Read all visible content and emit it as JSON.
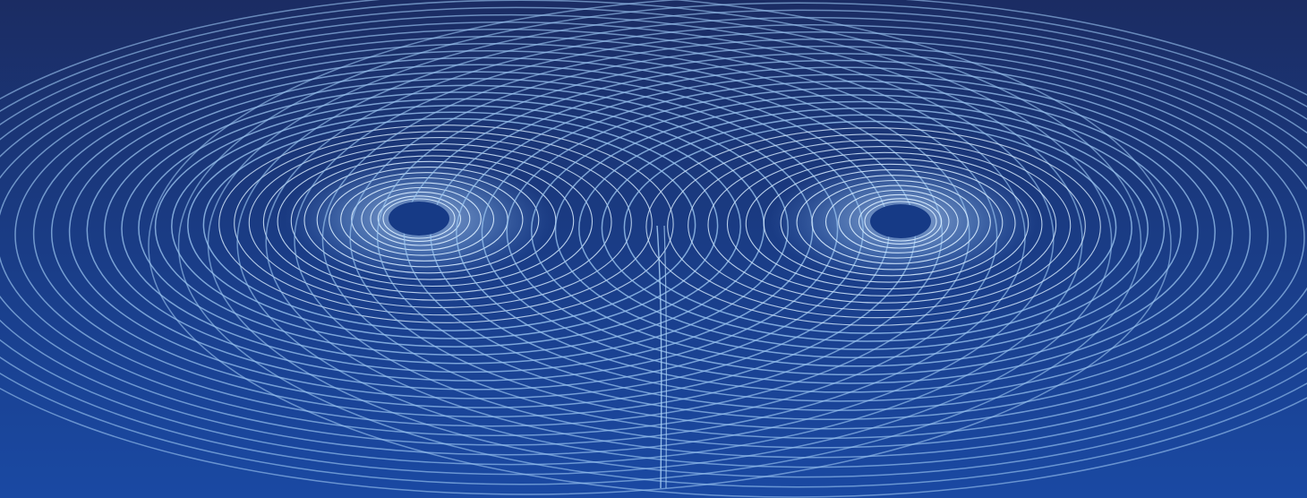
{
  "image": {
    "subject": "lorenz-attractor-butterfly-trajectory",
    "colors": {
      "background_top": "#1b2c63",
      "background_bottom": "#1a49a3",
      "line": "#9cc7f2",
      "line_bright": "#d7ecff",
      "core": "#163a86"
    },
    "lobes": 2,
    "loops_per_lobe": 34
  }
}
